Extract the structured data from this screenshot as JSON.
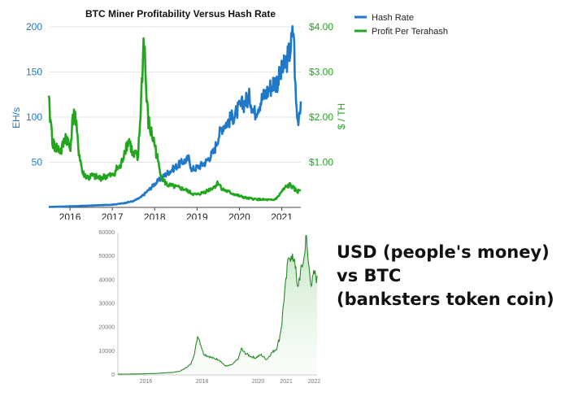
{
  "chart_data": [
    {
      "type": "line",
      "title": "BTC Miner Profitability Versus Hash Rate",
      "ylabel_left": "EH/s",
      "ylabel_right": "$ / TH",
      "ylim_left": [
        0,
        200
      ],
      "ylim_right": [
        0,
        4
      ],
      "yticks_left": [
        "50",
        "100",
        "150",
        "200"
      ],
      "yticks_right": [
        "$1.00",
        "$2.00",
        "$3.00",
        "$4.00"
      ],
      "xticks": [
        "2016",
        "2017",
        "2018",
        "2019",
        "2020",
        "2021"
      ],
      "xlim": [
        2015.5,
        2021.45
      ],
      "legend": "top-right",
      "colors": {
        "hash_rate": "#1f78c8",
        "profit": "#22a61e"
      },
      "series": [
        {
          "name": "Hash Rate",
          "axis": "left",
          "x": [
            2015.5,
            2015.75,
            2016.0,
            2016.25,
            2016.5,
            2016.75,
            2017.0,
            2017.25,
            2017.5,
            2017.67,
            2017.83,
            2018.0,
            2018.15,
            2018.3,
            2018.5,
            2018.65,
            2018.8,
            2018.88,
            2019.0,
            2019.2,
            2019.4,
            2019.5,
            2019.6,
            2019.75,
            2019.9,
            2020.0,
            2020.15,
            2020.25,
            2020.35,
            2020.5,
            2020.65,
            2020.8,
            2020.9,
            2021.0,
            2021.1,
            2021.2,
            2021.28,
            2021.33,
            2021.38,
            2021.45
          ],
          "values": [
            0.5,
            0.8,
            1.2,
            1.6,
            2,
            2.5,
            3,
            4.5,
            7,
            11,
            18,
            26,
            32,
            38,
            45,
            50,
            54,
            42,
            44,
            50,
            62,
            78,
            90,
            96,
            103,
            110,
            118,
            122,
            104,
            118,
            128,
            138,
            140,
            150,
            160,
            175,
            198,
            120,
            95,
            118
          ]
        },
        {
          "name": "Profit Per Terahash",
          "axis": "right",
          "x": [
            2015.5,
            2015.6,
            2015.7,
            2015.8,
            2015.9,
            2016.0,
            2016.1,
            2016.2,
            2016.3,
            2016.45,
            2016.5,
            2016.7,
            2016.9,
            2017.0,
            2017.1,
            2017.2,
            2017.3,
            2017.4,
            2017.5,
            2017.55,
            2017.6,
            2017.65,
            2017.7,
            2017.75,
            2017.8,
            2017.85,
            2017.9,
            2018.0,
            2018.1,
            2018.2,
            2018.3,
            2018.5,
            2018.7,
            2018.9,
            2019.0,
            2019.2,
            2019.4,
            2019.5,
            2019.6,
            2019.8,
            2020.0,
            2020.2,
            2020.4,
            2020.6,
            2020.8,
            2020.9,
            2021.0,
            2021.1,
            2021.2,
            2021.3,
            2021.38,
            2021.45
          ],
          "values": [
            2.3,
            1.4,
            1.3,
            1.25,
            1.6,
            1.3,
            2.2,
            1.3,
            0.75,
            0.65,
            0.7,
            0.65,
            0.7,
            0.7,
            0.85,
            0.9,
            1.3,
            1.5,
            1.1,
            1.2,
            1.0,
            1.8,
            2.8,
            3.9,
            2.5,
            1.9,
            1.7,
            1.4,
            0.9,
            0.6,
            0.5,
            0.45,
            0.4,
            0.3,
            0.28,
            0.35,
            0.45,
            0.55,
            0.4,
            0.32,
            0.25,
            0.2,
            0.18,
            0.17,
            0.16,
            0.22,
            0.35,
            0.45,
            0.5,
            0.4,
            0.35,
            0.4
          ]
        }
      ]
    },
    {
      "type": "area",
      "yticks": [
        "0",
        "10000",
        "20000",
        "30000",
        "40000",
        "50000",
        "60000"
      ],
      "ylim": [
        0,
        60000
      ],
      "xticks": [
        "2016",
        "2018",
        "2020",
        "2021",
        "2022"
      ],
      "xlim": [
        2015.1,
        2022.2
      ],
      "color": "#2a8a2a",
      "series": [
        {
          "x": [
            2015.1,
            2016.0,
            2016.5,
            2017.0,
            2017.3,
            2017.5,
            2017.7,
            2017.85,
            2017.95,
            2018.05,
            2018.15,
            2018.3,
            2018.5,
            2018.7,
            2018.9,
            2019.0,
            2019.2,
            2019.4,
            2019.5,
            2019.6,
            2019.8,
            2020.0,
            2020.2,
            2020.4,
            2020.6,
            2020.75,
            2020.85,
            2020.95,
            2021.0,
            2021.1,
            2021.2,
            2021.3,
            2021.4,
            2021.5,
            2021.55,
            2021.65,
            2021.75,
            2021.8,
            2021.85,
            2021.9,
            2022.0,
            2022.1,
            2022.2
          ],
          "values": [
            300,
            450,
            650,
            1000,
            1500,
            2800,
            4500,
            10000,
            17000,
            13000,
            9000,
            8000,
            7000,
            6500,
            4000,
            3700,
            4500,
            7000,
            11000,
            9500,
            8000,
            7200,
            8500,
            6500,
            9500,
            11000,
            15000,
            22000,
            30000,
            40000,
            52000,
            48000,
            50000,
            35000,
            40000,
            45000,
            50000,
            60000,
            52000,
            46000,
            38000,
            43000,
            40000
          ]
        }
      ]
    }
  ],
  "caption": {
    "line1": "USD (people's money)",
    "line2": "vs BTC",
    "line3": "(banksters token coin)"
  }
}
